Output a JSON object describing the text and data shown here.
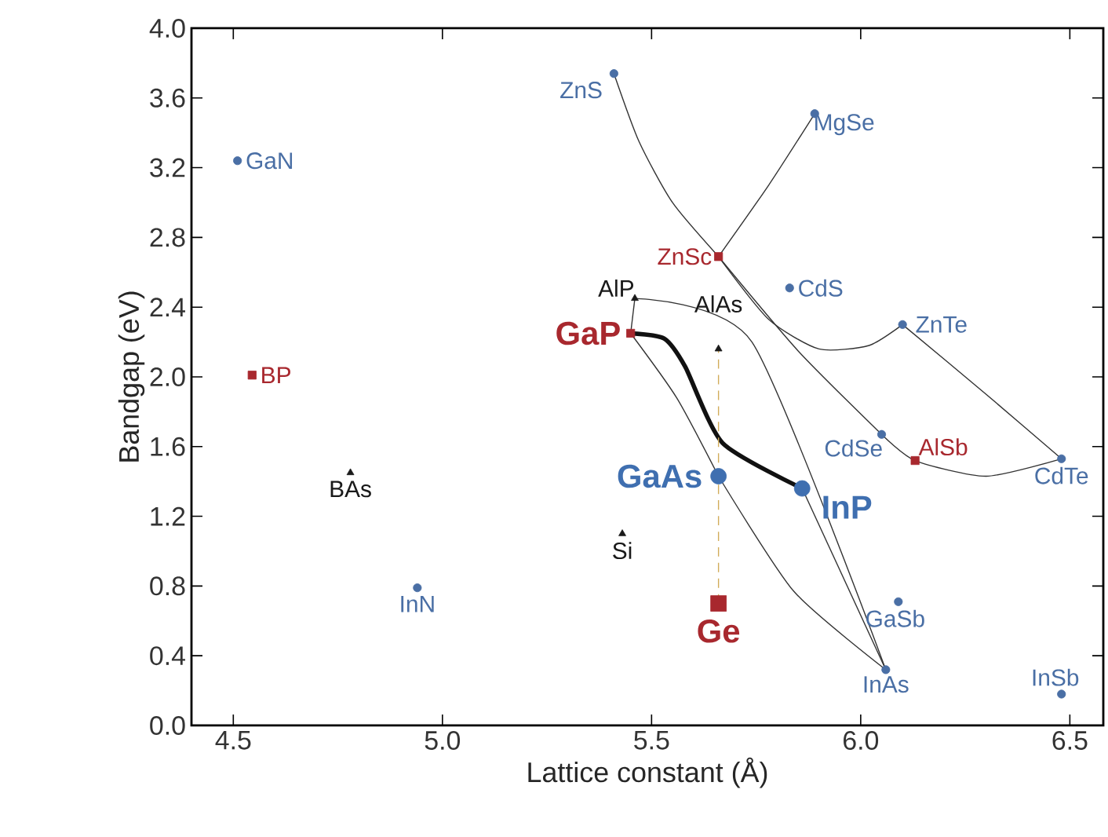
{
  "chart_data": {
    "type": "scatter",
    "xlabel": "Lattice constant (Å)",
    "ylabel": "Bandgap (eV)",
    "xlim": [
      4.4,
      6.58
    ],
    "ylim": [
      0,
      4.0
    ],
    "xticks": [
      4.5,
      {
        "value": 5.0,
        "label": "5.0"
      },
      5.5,
      {
        "value": 6.0,
        "label": "6.0"
      },
      6.5
    ],
    "yticks": [
      {
        "value": 0,
        "label": "0.0"
      },
      0.4,
      0.8,
      1.2,
      1.6,
      {
        "value": 2.0,
        "label": "2.0"
      },
      2.4,
      2.8,
      3.2,
      3.6,
      {
        "value": 4.0,
        "label": "4.0"
      }
    ],
    "grid": false,
    "series": [
      {
        "name": "GaN",
        "color": "#4a6fa5",
        "marker": "circle",
        "x": [
          4.51
        ],
        "values": [
          3.24
        ]
      },
      {
        "name": "BP",
        "color": "#a8282e",
        "marker": "square",
        "x": [
          4.545
        ],
        "values": [
          2.01
        ]
      },
      {
        "name": "BAs",
        "color": "#1a1a1a",
        "marker": "triangle",
        "x": [
          4.78
        ],
        "values": [
          1.45
        ]
      },
      {
        "name": "InN",
        "color": "#4a6fa5",
        "marker": "circle",
        "x": [
          4.94
        ],
        "values": [
          0.79
        ]
      },
      {
        "name": "Si",
        "color": "#1a1a1a",
        "marker": "triangle",
        "x": [
          5.43
        ],
        "values": [
          1.1
        ]
      },
      {
        "name": "Ge",
        "color": "#a8282e",
        "marker": "square",
        "x": [
          5.66
        ],
        "values": [
          0.7
        ]
      },
      {
        "name": "GaAs",
        "color": "#3f6fb0",
        "marker": "circle",
        "x": [
          5.66
        ],
        "values": [
          1.43
        ]
      },
      {
        "name": "InP",
        "color": "#3f6fb0",
        "marker": "circle",
        "x": [
          5.86
        ],
        "values": [
          1.36
        ]
      },
      {
        "name": "GaP",
        "color": "#a8282e",
        "marker": "square",
        "x": [
          5.45
        ],
        "values": [
          2.25
        ]
      },
      {
        "name": "AlP",
        "color": "#1a1a1a",
        "marker": "triangle",
        "x": [
          5.46
        ],
        "values": [
          2.45
        ]
      },
      {
        "name": "AlAs",
        "color": "#1a1a1a",
        "marker": "triangle",
        "x": [
          5.66
        ],
        "values": [
          2.16
        ]
      },
      {
        "name": "ZnS",
        "color": "#4a6fa5",
        "marker": "circle",
        "x": [
          5.41
        ],
        "values": [
          3.74
        ]
      },
      {
        "name": "MgSe",
        "color": "#4a6fa5",
        "marker": "circle",
        "x": [
          5.89
        ],
        "values": [
          3.51
        ]
      },
      {
        "name": "ZnSc",
        "color": "#a8282e",
        "marker": "square",
        "x": [
          5.66
        ],
        "values": [
          2.69
        ]
      },
      {
        "name": "CdS",
        "color": "#4a6fa5",
        "marker": "circle",
        "x": [
          5.83
        ],
        "values": [
          2.51
        ]
      },
      {
        "name": "ZnTe",
        "color": "#4a6fa5",
        "marker": "circle",
        "x": [
          6.1
        ],
        "values": [
          2.3
        ]
      },
      {
        "name": "CdSe",
        "color": "#4a6fa5",
        "marker": "circle",
        "x": [
          6.05
        ],
        "values": [
          1.67
        ]
      },
      {
        "name": "AlSb",
        "color": "#a8282e",
        "marker": "square",
        "x": [
          6.13
        ],
        "values": [
          1.52
        ]
      },
      {
        "name": "CdTe",
        "color": "#4a6fa5",
        "marker": "circle",
        "x": [
          6.48
        ],
        "values": [
          1.53
        ]
      },
      {
        "name": "GaSb",
        "color": "#4a6fa5",
        "marker": "circle",
        "x": [
          6.09
        ],
        "values": [
          0.71
        ]
      },
      {
        "name": "InAs",
        "color": "#4a6fa5",
        "marker": "circle",
        "x": [
          6.06
        ],
        "values": [
          0.32
        ]
      },
      {
        "name": "InSb",
        "color": "#4a6fa5",
        "marker": "circle",
        "x": [
          6.48
        ],
        "values": [
          0.18
        ]
      },
      {
        "type": "line",
        "color": "#333333",
        "marker": "none",
        "line_style": "solid",
        "x": [
          5.41,
          5.47,
          5.55,
          5.66
        ],
        "values": [
          3.74,
          3.35,
          3.0,
          2.69
        ]
      },
      {
        "type": "line",
        "color": "#333333",
        "marker": "none",
        "line_style": "solid",
        "x": [
          5.66,
          5.85,
          6.05
        ],
        "values": [
          2.69,
          2.15,
          1.67
        ]
      },
      {
        "type": "line",
        "color": "#333333",
        "marker": "none",
        "line_style": "solid",
        "x": [
          5.66,
          5.78,
          5.9,
          6.02,
          6.1
        ],
        "values": [
          2.69,
          2.33,
          2.16,
          2.18,
          2.3
        ]
      },
      {
        "type": "line",
        "color": "#333333",
        "marker": "none",
        "line_style": "solid",
        "x": [
          5.89,
          5.78,
          5.66
        ],
        "values": [
          3.51,
          3.1,
          2.69
        ]
      },
      {
        "type": "line",
        "color": "#333333",
        "marker": "none",
        "line_style": "solid",
        "x": [
          6.1,
          6.3,
          6.48
        ],
        "values": [
          2.3,
          1.9,
          1.53
        ]
      },
      {
        "type": "line",
        "color": "#333333",
        "marker": "none",
        "line_style": "solid",
        "x": [
          6.05,
          6.13,
          6.3,
          6.48
        ],
        "values": [
          1.67,
          1.52,
          1.43,
          1.53
        ]
      },
      {
        "type": "line",
        "color": "#333333",
        "marker": "none",
        "line_style": "solid",
        "x": [
          5.46,
          5.45
        ],
        "values": [
          2.45,
          2.25
        ]
      },
      {
        "type": "line",
        "color": "#333333",
        "marker": "none",
        "line_style": "solid",
        "x": [
          5.46,
          5.74,
          6.06
        ],
        "values": [
          2.45,
          2.2,
          0.32
        ]
      },
      {
        "type": "line",
        "color": "#333333",
        "marker": "none",
        "line_style": "solid",
        "x": [
          5.45,
          5.56,
          5.66
        ],
        "values": [
          2.25,
          1.88,
          1.43
        ]
      },
      {
        "type": "line",
        "color": "#333333",
        "marker": "none",
        "line_style": "solid",
        "x": [
          5.66,
          5.84,
          6.06
        ],
        "values": [
          1.43,
          0.77,
          0.32
        ]
      },
      {
        "type": "line",
        "color": "#333333",
        "marker": "none",
        "line_style": "solid",
        "x": [
          5.86,
          6.06
        ],
        "values": [
          1.36,
          0.32
        ]
      },
      {
        "type": "line",
        "color": "#111111",
        "marker": "none",
        "line_style": "solid",
        "x": [
          5.45,
          5.53,
          5.58,
          5.67,
          5.86
        ],
        "values": [
          2.25,
          2.22,
          2.06,
          1.62,
          1.36
        ]
      },
      {
        "type": "line",
        "color": "#d2ac5a",
        "marker": "none",
        "line_style": "dashed",
        "x": [
          5.66,
          5.66
        ],
        "values": [
          0.7,
          2.16
        ]
      }
    ]
  }
}
